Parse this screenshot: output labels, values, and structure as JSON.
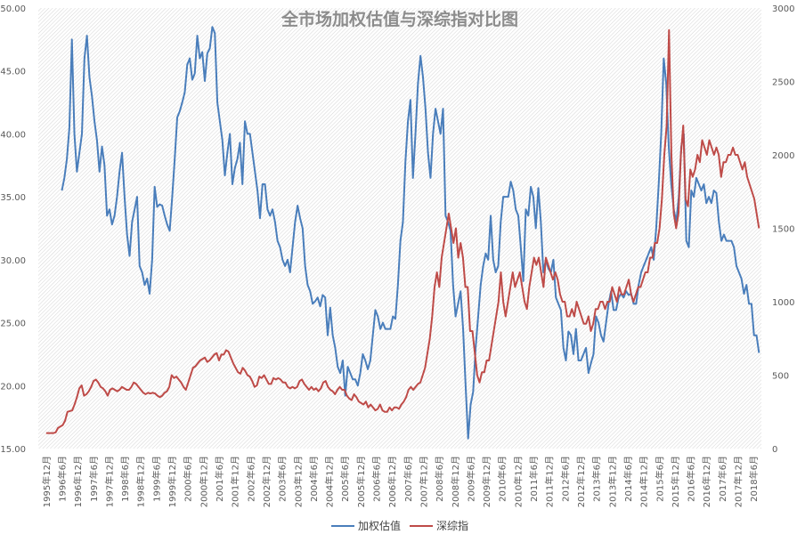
{
  "chart_data": {
    "type": "line",
    "title": "全市场加权估值与深综指对比图",
    "x_labels": [
      "1995年12月",
      "1996年6月",
      "1996年12月",
      "1997年6月",
      "1997年12月",
      "1998年6月",
      "1998年12月",
      "1999年6月",
      "1999年12月",
      "2000年6月",
      "2000年12月",
      "2001年6月",
      "2001年12月",
      "2002年6月",
      "2002年12月",
      "2003年6月",
      "2003年12月",
      "2004年6月",
      "2004年12月",
      "2005年6月",
      "2005年12月",
      "2006年6月",
      "2006年12月",
      "2007年6月",
      "2007年12月",
      "2008年6月",
      "2008年12月",
      "2009年6月",
      "2009年12月",
      "2010年6月",
      "2010年12月",
      "2011年6月",
      "2011年12月",
      "2012年6月",
      "2012年12月",
      "2013年6月",
      "2013年12月",
      "2014年6月",
      "2014年12月",
      "2015年6月",
      "2015年12月",
      "2016年6月",
      "2016年12月",
      "2017年6月",
      "2017年12月",
      "2018年6月"
    ],
    "y_left": {
      "min": 15,
      "max": 50,
      "ticks": [
        "15.00",
        "20.00",
        "25.00",
        "30.00",
        "35.00",
        "40.00",
        "45.00",
        "50.00"
      ]
    },
    "y_right": {
      "min": 0,
      "max": 3000,
      "ticks": [
        "0",
        "500",
        "1000",
        "1500",
        "2000",
        "2500",
        "3000"
      ]
    },
    "grid": "diagonal-hatch",
    "legend_position": "bottom-center",
    "series": [
      {
        "name": "加权估值",
        "axis": "left",
        "color": "#4a7ebb",
        "x_start_index": 1,
        "values": [
          35.5,
          36.5,
          38.0,
          40.5,
          47.5,
          40.0,
          37.0,
          38.5,
          40.0,
          46.0,
          47.8,
          44.5,
          43.0,
          41.0,
          39.5,
          37.0,
          39.0,
          37.5,
          33.5,
          34.0,
          32.8,
          33.5,
          35.0,
          37.0,
          38.5,
          35.0,
          32.0,
          30.3,
          33.0,
          34.0,
          35.0,
          29.5,
          29.0,
          28.0,
          28.5,
          27.3,
          30.0,
          35.8,
          34.2,
          34.4,
          34.3,
          33.5,
          32.8,
          32.3,
          35.0,
          38.0,
          41.3,
          41.8,
          42.5,
          43.3,
          45.5,
          46.0,
          44.3,
          44.8,
          47.8,
          46.0,
          46.5,
          44.2,
          46.4,
          46.8,
          48.5,
          48.0,
          42.5,
          41.0,
          39.5,
          36.7,
          38.5,
          40.0,
          36.0,
          37.3,
          38.0,
          39.3,
          36.0,
          41.0,
          40.0,
          40.0,
          38.5,
          37.0,
          35.5,
          33.3,
          36.0,
          36.0,
          34.0,
          33.5,
          34.0,
          33.0,
          31.5,
          31.0,
          30.0,
          29.5,
          30.0,
          29.0,
          31.0,
          33.0,
          34.3,
          33.3,
          32.5,
          29.5,
          28.0,
          27.5,
          26.5,
          26.7,
          27.0,
          26.3,
          27.2,
          27.0,
          24.0,
          26.2,
          24.0,
          23.0,
          21.5,
          21.0,
          22.0,
          19.2,
          21.5,
          21.0,
          20.5,
          20.5,
          20.0,
          21.0,
          22.5,
          22.0,
          21.3,
          22.0,
          24.0,
          26.0,
          25.5,
          24.5,
          25.0,
          24.5,
          24.5,
          24.5,
          25.5,
          25.3,
          28.0,
          31.5,
          33.0,
          37.8,
          41.0,
          42.7,
          36.5,
          40.0,
          44.0,
          46.2,
          44.5,
          42.0,
          38.5,
          36.5,
          40.0,
          42.0,
          41.0,
          40.0,
          42.0,
          33.5,
          33.0,
          32.3,
          28.0,
          25.5,
          26.5,
          27.5,
          24.5,
          20.0,
          15.8,
          18.5,
          19.5,
          23.0,
          25.5,
          28.0,
          29.5,
          30.5,
          30.0,
          33.5,
          30.0,
          29.0,
          29.5,
          33.0,
          35.0,
          35.0,
          35.0,
          36.2,
          35.5,
          34.0,
          33.5,
          31.0,
          28.3,
          34.0,
          33.5,
          35.8,
          35.0,
          32.5,
          35.7,
          33.0,
          29.0,
          30.0,
          29.3,
          29.0,
          30.0,
          27.0,
          26.5,
          26.0,
          23.0,
          22.0,
          24.3,
          24.0,
          22.5,
          24.5,
          22.0,
          22.0,
          22.5,
          23.0,
          21.0,
          21.8,
          22.5,
          25.5,
          25.0,
          24.0,
          23.5,
          25.0,
          26.5,
          27.5,
          26.0,
          26.0,
          27.0,
          27.3,
          27.0,
          27.5,
          27.2,
          27.3,
          26.5,
          26.5,
          28.0,
          29.0,
          29.5,
          30.0,
          30.5,
          31.0,
          30.0,
          32.5,
          36.0,
          40.0,
          46.0,
          44.0,
          39.0,
          36.0,
          34.0,
          33.0,
          35.0,
          39.0,
          40.0,
          31.5,
          31.0,
          35.5,
          35.0,
          36.5,
          36.0,
          35.5,
          36.0,
          34.5,
          35.0,
          34.5,
          35.5,
          35.3,
          33.0,
          31.5,
          32.0,
          31.5,
          31.5,
          31.5,
          31.0,
          29.5,
          29.0,
          28.5,
          27.3,
          28.0,
          26.5,
          26.5,
          24.0,
          24.0,
          22.6
        ]
      },
      {
        "name": "深综指",
        "axis": "right",
        "color": "#be4b48",
        "x_start_index": 0,
        "values": [
          105,
          105,
          105,
          105,
          110,
          140,
          150,
          160,
          190,
          250,
          255,
          260,
          300,
          350,
          410,
          430,
          360,
          370,
          390,
          420,
          460,
          470,
          450,
          420,
          410,
          390,
          360,
          400,
          410,
          400,
          390,
          400,
          420,
          410,
          400,
          400,
          420,
          450,
          440,
          420,
          400,
          380,
          370,
          380,
          375,
          380,
          375,
          360,
          350,
          360,
          380,
          390,
          420,
          500,
          480,
          490,
          470,
          450,
          420,
          400,
          450,
          500,
          550,
          560,
          580,
          600,
          610,
          620,
          590,
          600,
          620,
          640,
          650,
          600,
          640,
          640,
          670,
          660,
          620,
          580,
          550,
          520,
          510,
          550,
          530,
          500,
          490,
          460,
          420,
          430,
          490,
          480,
          500,
          470,
          440,
          440,
          480,
          470,
          480,
          470,
          450,
          450,
          420,
          410,
          420,
          410,
          420,
          460,
          470,
          440,
          420,
          400,
          420,
          400,
          410,
          390,
          410,
          450,
          460,
          420,
          400,
          390,
          370,
          400,
          420,
          400,
          400,
          360,
          340,
          330,
          370,
          350,
          320,
          310,
          300,
          320,
          280,
          300,
          280,
          260,
          270,
          300,
          260,
          250,
          250,
          280,
          260,
          280,
          280,
          270,
          300,
          320,
          350,
          400,
          420,
          400,
          420,
          440,
          450,
          500,
          550,
          650,
          750,
          900,
          1100,
          1200,
          1100,
          1300,
          1400,
          1500,
          1600,
          1500,
          1400,
          1500,
          1300,
          1400,
          1300,
          1100,
          1100,
          800,
          800,
          650,
          500,
          450,
          520,
          520,
          600,
          600,
          700,
          800,
          900,
          1000,
          1200,
          1000,
          900,
          1000,
          1100,
          1200,
          1100,
          1150,
          1200,
          1100,
          1000,
          950,
          1100,
          1200,
          1300,
          1250,
          1300,
          1200,
          1100,
          1300,
          1250,
          1200,
          1150,
          1200,
          1150,
          1050,
          1000,
          1000,
          900,
          900,
          950,
          900,
          1000,
          950,
          900,
          850,
          850,
          900,
          800,
          850,
          950,
          950,
          1000,
          1000,
          950,
          1000,
          1000,
          1100,
          1050,
          1000,
          1100,
          1050,
          1050,
          1100,
          1150,
          1050,
          1000,
          1050,
          1100,
          1100,
          1150,
          1200,
          1200,
          1300,
          1300,
          1400,
          1400,
          1500,
          1700,
          2000,
          2200,
          2850,
          2000,
          1600,
          1500,
          1600,
          2000,
          2200,
          1700,
          1650,
          1900,
          1850,
          1900,
          2000,
          1950,
          2100,
          2050,
          2000,
          2100,
          2050,
          2000,
          2050,
          2000,
          1850,
          1950,
          1950,
          2000,
          2000,
          2050,
          2000,
          2000,
          1950,
          1900,
          1950,
          1850,
          1800,
          1750,
          1700,
          1600,
          1500
        ]
      }
    ]
  }
}
